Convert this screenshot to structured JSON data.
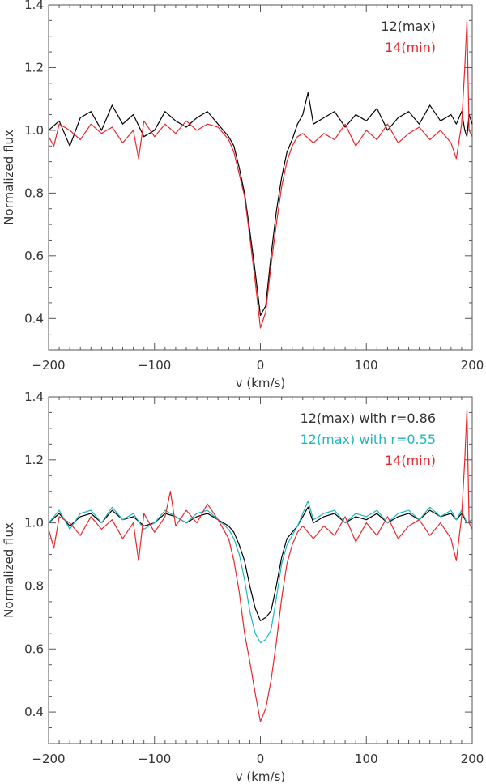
{
  "chart_data": [
    {
      "type": "line",
      "title": "",
      "xlabel": "v (km/s)",
      "ylabel": "Normalized flux",
      "xlim": [
        -200,
        200
      ],
      "ylim": [
        0.3,
        1.4
      ],
      "xticks": [
        -200,
        -100,
        0,
        100,
        200
      ],
      "xtick_labels": [
        "−200",
        "−100",
        "0",
        "100",
        "200"
      ],
      "yticks": [
        0.4,
        0.6,
        0.8,
        1.0,
        1.2,
        1.4
      ],
      "ytick_labels": [
        "0.4",
        "0.6",
        "0.8",
        "1.0",
        "1.2",
        "1.4"
      ],
      "legend_position": "top-right",
      "series": [
        {
          "name": "12(max)",
          "color": "#000000",
          "x": [
            -200,
            -190,
            -180,
            -170,
            -160,
            -150,
            -140,
            -130,
            -120,
            -110,
            -100,
            -90,
            -80,
            -70,
            -60,
            -50,
            -40,
            -30,
            -25,
            -20,
            -15,
            -10,
            -5,
            0,
            5,
            10,
            15,
            20,
            25,
            30,
            35,
            40,
            45,
            50,
            60,
            70,
            80,
            90,
            100,
            110,
            120,
            130,
            140,
            150,
            160,
            170,
            180,
            185,
            190,
            193,
            195,
            197,
            200
          ],
          "y": [
            1.0,
            1.03,
            0.95,
            1.04,
            1.06,
            1.0,
            1.08,
            1.02,
            1.05,
            0.98,
            1.0,
            1.06,
            1.03,
            1.01,
            1.04,
            1.06,
            1.02,
            0.98,
            0.95,
            0.88,
            0.8,
            0.68,
            0.55,
            0.41,
            0.44,
            0.6,
            0.74,
            0.85,
            0.93,
            0.97,
            1.02,
            1.05,
            1.12,
            1.02,
            1.04,
            1.06,
            1.01,
            1.05,
            1.03,
            1.07,
            1.0,
            1.04,
            1.06,
            1.02,
            1.08,
            1.03,
            1.05,
            1.02,
            1.06,
            1.0,
            0.98,
            1.05,
            1.02
          ]
        },
        {
          "name": "14(min)",
          "color": "#e8262b",
          "x": [
            -200,
            -195,
            -190,
            -180,
            -170,
            -160,
            -150,
            -140,
            -130,
            -120,
            -115,
            -110,
            -100,
            -90,
            -80,
            -70,
            -60,
            -50,
            -40,
            -30,
            -25,
            -20,
            -15,
            -10,
            -5,
            0,
            5,
            10,
            15,
            20,
            25,
            30,
            35,
            40,
            50,
            60,
            70,
            80,
            90,
            100,
            110,
            120,
            130,
            140,
            150,
            160,
            170,
            180,
            185,
            190,
            193,
            195,
            197,
            200
          ],
          "y": [
            0.98,
            0.95,
            1.02,
            1.0,
            0.97,
            1.02,
            0.99,
            1.01,
            0.96,
            1.0,
            0.91,
            1.03,
            0.98,
            1.02,
            0.99,
            1.03,
            1.0,
            1.02,
            1.01,
            0.97,
            0.93,
            0.86,
            0.79,
            0.66,
            0.52,
            0.37,
            0.42,
            0.57,
            0.7,
            0.82,
            0.9,
            0.95,
            0.98,
            0.99,
            0.96,
            0.99,
            0.97,
            1.02,
            0.95,
            1.0,
            0.97,
            1.02,
            0.96,
            0.99,
            1.01,
            0.97,
            1.0,
            0.96,
            0.91,
            1.02,
            1.2,
            1.35,
            1.0,
            0.98
          ]
        }
      ]
    },
    {
      "type": "line",
      "title": "",
      "xlabel": "v (km/s)",
      "ylabel": "Normalized flux",
      "xlim": [
        -200,
        200
      ],
      "ylim": [
        0.3,
        1.4
      ],
      "xticks": [
        -200,
        -100,
        0,
        100,
        200
      ],
      "xtick_labels": [
        "−200",
        "−100",
        "0",
        "100",
        "200"
      ],
      "yticks": [
        0.4,
        0.6,
        0.8,
        1.0,
        1.2,
        1.4
      ],
      "ytick_labels": [
        "0.4",
        "0.6",
        "0.8",
        "1.0",
        "1.2",
        "1.4"
      ],
      "legend_position": "top-right",
      "series": [
        {
          "name": "12(max) with r=0.86",
          "color": "#000000",
          "x": [
            -200,
            -190,
            -180,
            -170,
            -160,
            -150,
            -140,
            -130,
            -120,
            -110,
            -100,
            -90,
            -80,
            -70,
            -60,
            -50,
            -40,
            -30,
            -25,
            -20,
            -15,
            -10,
            -5,
            0,
            5,
            10,
            15,
            20,
            25,
            30,
            35,
            40,
            45,
            50,
            60,
            70,
            80,
            90,
            100,
            110,
            120,
            130,
            140,
            150,
            160,
            170,
            180,
            185,
            190,
            195,
            200
          ],
          "y": [
            1.0,
            1.03,
            0.99,
            1.02,
            1.03,
            1.0,
            1.04,
            1.01,
            1.02,
            0.99,
            1.0,
            1.03,
            1.02,
            1.0,
            1.02,
            1.03,
            1.01,
            0.99,
            0.97,
            0.93,
            0.88,
            0.8,
            0.73,
            0.69,
            0.7,
            0.72,
            0.8,
            0.89,
            0.95,
            0.97,
            0.99,
            1.02,
            1.05,
            1.0,
            1.02,
            1.03,
            1.0,
            1.02,
            1.01,
            1.03,
            1.0,
            1.02,
            1.03,
            1.01,
            1.04,
            1.02,
            1.03,
            1.01,
            1.03,
            1.0,
            1.01
          ]
        },
        {
          "name": "12(max) with r=0.55",
          "color": "#1fb6bd",
          "x": [
            -200,
            -190,
            -180,
            -170,
            -160,
            -150,
            -140,
            -130,
            -120,
            -110,
            -100,
            -90,
            -80,
            -70,
            -60,
            -50,
            -40,
            -30,
            -25,
            -20,
            -15,
            -10,
            -5,
            0,
            5,
            10,
            15,
            20,
            25,
            30,
            35,
            40,
            45,
            50,
            60,
            70,
            80,
            90,
            100,
            110,
            120,
            130,
            140,
            150,
            160,
            170,
            180,
            185,
            190,
            195,
            200
          ],
          "y": [
            1.0,
            1.04,
            0.98,
            1.03,
            1.04,
            1.0,
            1.05,
            1.01,
            1.03,
            0.98,
            1.0,
            1.04,
            1.02,
            1.0,
            1.03,
            1.04,
            1.01,
            0.98,
            0.95,
            0.9,
            0.82,
            0.72,
            0.65,
            0.62,
            0.63,
            0.66,
            0.76,
            0.87,
            0.93,
            0.96,
            0.99,
            1.03,
            1.07,
            1.01,
            1.03,
            1.04,
            1.0,
            1.03,
            1.02,
            1.04,
            1.0,
            1.03,
            1.04,
            1.01,
            1.05,
            1.02,
            1.04,
            1.01,
            1.04,
            1.0,
            1.01
          ]
        },
        {
          "name": "14(min)",
          "color": "#e8262b",
          "x": [
            -200,
            -195,
            -190,
            -180,
            -170,
            -160,
            -150,
            -140,
            -130,
            -120,
            -115,
            -110,
            -100,
            -90,
            -85,
            -80,
            -70,
            -60,
            -50,
            -40,
            -30,
            -25,
            -20,
            -15,
            -10,
            -5,
            0,
            5,
            10,
            15,
            20,
            25,
            30,
            35,
            40,
            50,
            60,
            70,
            80,
            90,
            100,
            110,
            120,
            130,
            140,
            150,
            160,
            170,
            180,
            185,
            190,
            193,
            195,
            197,
            200
          ],
          "y": [
            0.98,
            0.92,
            1.02,
            1.0,
            0.96,
            1.02,
            0.98,
            1.01,
            0.95,
            1.0,
            0.88,
            1.03,
            0.97,
            1.02,
            1.1,
            0.99,
            1.04,
            1.0,
            1.06,
            1.01,
            0.95,
            0.88,
            0.78,
            0.65,
            0.56,
            0.46,
            0.37,
            0.41,
            0.5,
            0.62,
            0.76,
            0.87,
            0.93,
            0.97,
            0.99,
            0.95,
            0.99,
            0.96,
            1.02,
            0.94,
            1.0,
            0.96,
            1.02,
            0.95,
            0.99,
            1.01,
            0.96,
            1.0,
            0.95,
            0.88,
            1.02,
            1.2,
            1.36,
            1.0,
            0.98
          ]
        }
      ]
    }
  ]
}
